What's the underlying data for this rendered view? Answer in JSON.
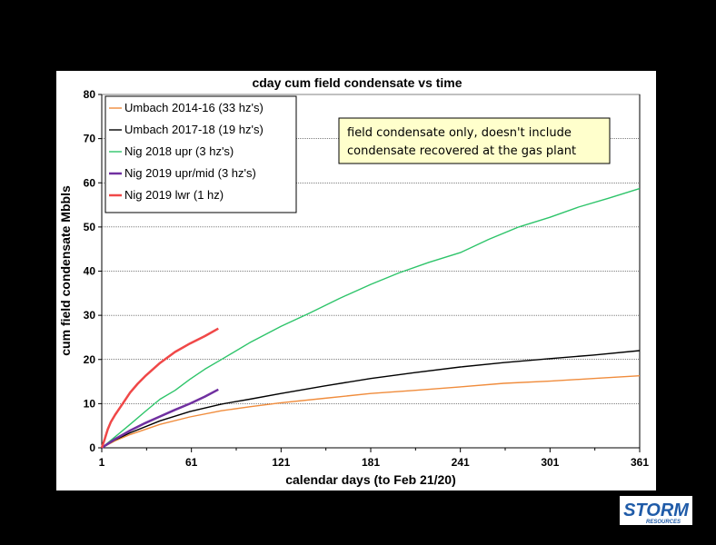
{
  "chart_data": {
    "type": "line",
    "title": "cday cum field condensate vs time",
    "xlabel": "calendar days (to Feb 21/20)",
    "ylabel": "cum field condensate Mbbls",
    "xlim": [
      1,
      361
    ],
    "ylim": [
      0,
      80
    ],
    "x_ticks": [
      1,
      61,
      121,
      181,
      241,
      301,
      361
    ],
    "y_ticks": [
      0,
      10,
      20,
      30,
      40,
      50,
      60,
      70,
      80
    ],
    "grid": "horizontal",
    "legend": "top-left",
    "annotation": {
      "lines": [
        "field condensate only, doesn't include",
        "condensate recovered at the gas plant"
      ]
    },
    "series": [
      {
        "name": "Umbach 2014-16 (33 hz's)",
        "color": "#F08C3C",
        "x": [
          1,
          10,
          20,
          40,
          60,
          81,
          100,
          121,
          150,
          181,
          210,
          241,
          270,
          301,
          330,
          361
        ],
        "y": [
          0,
          1.6,
          3.0,
          5.3,
          7.0,
          8.4,
          9.3,
          10.2,
          11.2,
          12.3,
          13.0,
          13.8,
          14.6,
          15.1,
          15.7,
          16.3
        ]
      },
      {
        "name": "Umbach 2017-18 (19 hz's)",
        "color": "#000000",
        "x": [
          1,
          10,
          20,
          40,
          60,
          81,
          100,
          121,
          150,
          181,
          210,
          241,
          270,
          301,
          330,
          361
        ],
        "y": [
          0,
          1.8,
          3.4,
          6.1,
          8.2,
          9.9,
          11.0,
          12.3,
          14.0,
          15.7,
          17.0,
          18.3,
          19.3,
          20.2,
          21.0,
          22.0
        ]
      },
      {
        "name": "Nig 2018 upr (3 hz's)",
        "color": "#2EC46A",
        "x": [
          1,
          10,
          20,
          30,
          40,
          50,
          60,
          70,
          81,
          100,
          121,
          140,
          160,
          181,
          200,
          220,
          241,
          260,
          280,
          301,
          320,
          340,
          361
        ],
        "y": [
          0,
          2.5,
          5.3,
          8.2,
          11.0,
          13.0,
          15.5,
          17.8,
          20.0,
          23.8,
          27.5,
          30.5,
          33.8,
          37.0,
          39.6,
          42.0,
          44.2,
          47.2,
          50.0,
          52.2,
          54.5,
          56.5,
          58.7
        ]
      },
      {
        "name": "Nig 2019 upr/mid (3 hz's)",
        "color": "#7030A0",
        "x": [
          1,
          10,
          20,
          30,
          40,
          50,
          60,
          70,
          79
        ],
        "y": [
          0,
          2.0,
          3.9,
          5.6,
          7.1,
          8.6,
          10.0,
          11.6,
          13.2
        ]
      },
      {
        "name": "Nig 2019 lwr (1 hz)",
        "color": "#F04848",
        "x": [
          1,
          3,
          5,
          7,
          10,
          15,
          20,
          25,
          30,
          40,
          50,
          60,
          70,
          79
        ],
        "y": [
          0,
          2.0,
          4.2,
          5.8,
          7.5,
          10.0,
          12.5,
          14.5,
          16.2,
          19.2,
          21.7,
          23.6,
          25.3,
          27.0
        ]
      }
    ]
  },
  "logo": {
    "word": "STORM",
    "sub": "RESOURCES",
    "color": "#1F5BA8"
  }
}
